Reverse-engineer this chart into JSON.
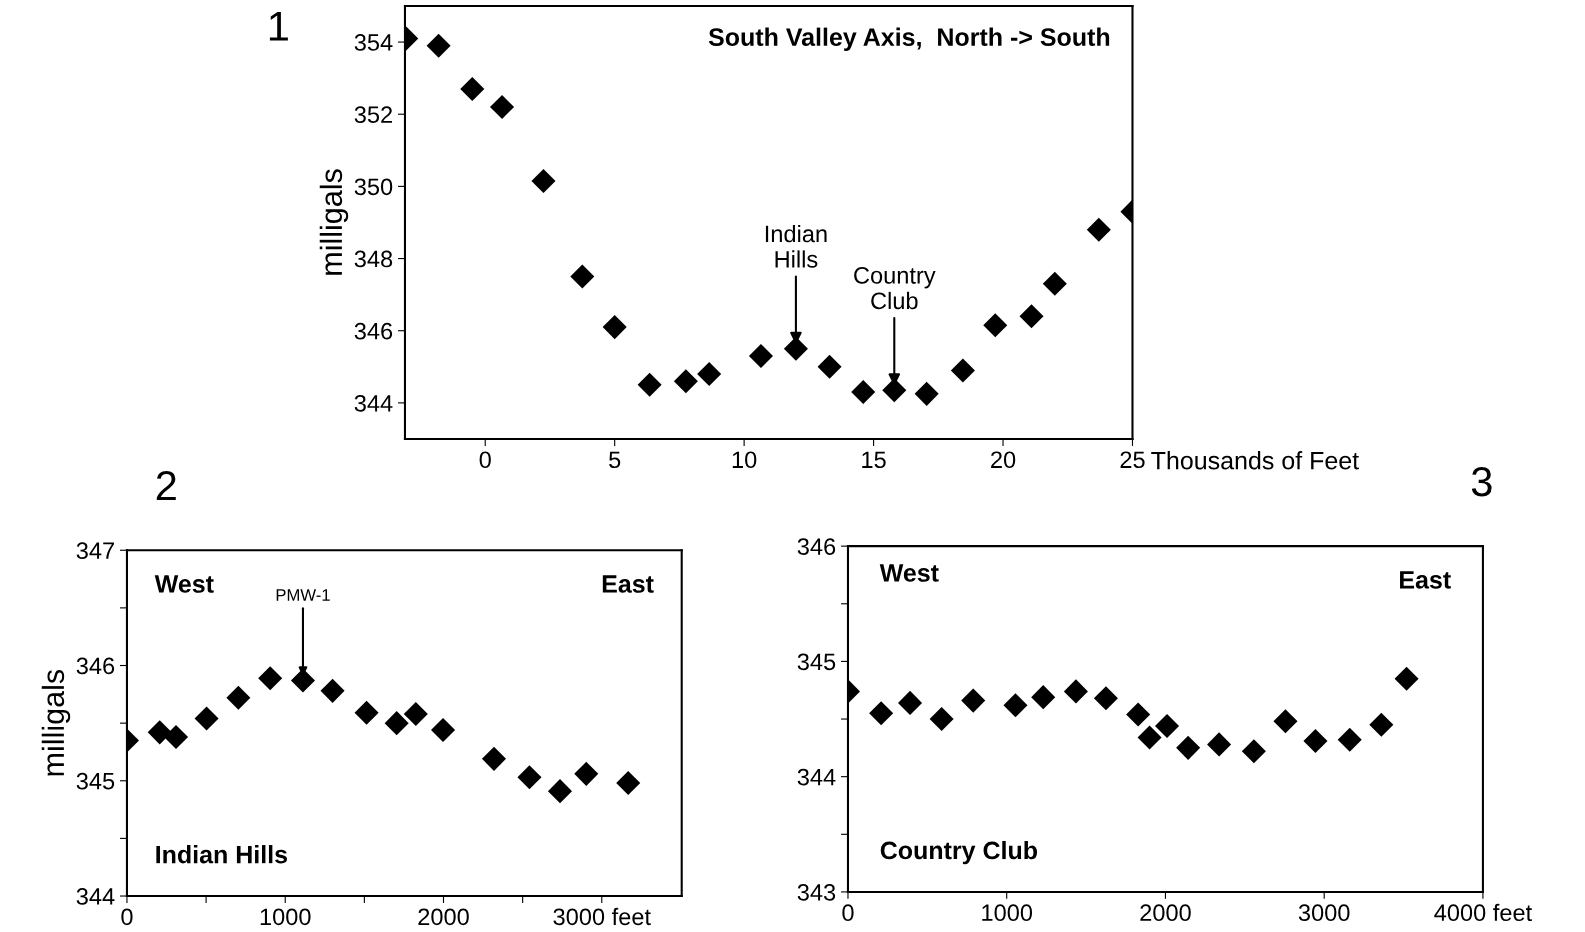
{
  "chart_data": [
    {
      "type": "scatter",
      "title": "1",
      "xlabel": "Thousands of Feet",
      "ylabel": "milligals",
      "marker": "diamond",
      "grid": false,
      "legend": false,
      "annotations": [
        "South Valley Axis,  North -> South",
        {
          "text": "Indian\nHills",
          "x": 12.0,
          "y": 345.5
        },
        {
          "text": "Country\nClub",
          "x": 15.8,
          "y": 344.35
        }
      ],
      "xlim": [
        -3.1,
        25
      ],
      "xticks": [
        0,
        5,
        10,
        15,
        20,
        25
      ],
      "ylim": [
        343,
        355
      ],
      "yticks": [
        344,
        346,
        348,
        350,
        352,
        354
      ],
      "series": [
        {
          "color": "#000000",
          "x": [
            -3.05,
            -1.8,
            -0.5,
            0.65,
            2.25,
            3.75,
            5.0,
            6.35,
            7.75,
            8.65,
            10.65,
            12.0,
            13.3,
            14.6,
            15.8,
            17.05,
            18.45,
            19.7,
            21.1,
            22.0,
            23.7,
            25.0
          ],
          "values": [
            354.1,
            353.9,
            352.7,
            352.2,
            350.15,
            347.5,
            346.1,
            344.5,
            344.6,
            344.8,
            345.3,
            345.5,
            345.0,
            344.3,
            344.35,
            344.25,
            344.9,
            346.15,
            346.4,
            347.3,
            348.8,
            349.3
          ]
        }
      ]
    },
    {
      "type": "scatter",
      "title": "2",
      "ylabel": "milligals",
      "marker": "diamond",
      "grid": false,
      "legend": false,
      "annotations": [
        "West",
        "East",
        "Indian Hills",
        {
          "text": "PMW-1",
          "x": 1112,
          "y": 345.87
        }
      ],
      "xlim": [
        0,
        3505
      ],
      "xticks": [
        0,
        {
          "value": 500,
          "label": null
        },
        1000,
        {
          "value": 1500,
          "label": null
        },
        2000,
        {
          "value": 2500,
          "label": null
        },
        {
          "value": 3000,
          "label": "3000 feet"
        }
      ],
      "ylim": [
        344,
        347
      ],
      "yticks": [
        344,
        {
          "value": 344.5,
          "label": null
        },
        345,
        {
          "value": 345.5,
          "label": null
        },
        346,
        {
          "value": 346.5,
          "label": null
        },
        347
      ],
      "series": [
        {
          "color": "#000000",
          "x": [
            0,
            207,
            310,
            503,
            704,
            905,
            1112,
            1299,
            1514,
            1704,
            1825,
            1997,
            2319,
            2543,
            2736,
            2902,
            3167
          ],
          "values": [
            345.35,
            345.42,
            345.38,
            345.54,
            345.72,
            345.89,
            345.87,
            345.78,
            345.59,
            345.5,
            345.58,
            345.44,
            345.19,
            345.03,
            344.91,
            345.06,
            344.98
          ]
        }
      ]
    },
    {
      "type": "scatter",
      "title": "3",
      "marker": "diamond",
      "grid": false,
      "legend": false,
      "annotations": [
        "West",
        "East",
        "Country Club"
      ],
      "xlim": [
        0,
        4000
      ],
      "xticks": [
        0,
        1000,
        2000,
        3000,
        {
          "value": 4000,
          "label": "4000 feet"
        }
      ],
      "ylim": [
        343,
        346
      ],
      "yticks": [
        343,
        {
          "value": 343.5,
          "label": null
        },
        344,
        {
          "value": 344.5,
          "label": null
        },
        345,
        {
          "value": 345.5,
          "label": null
        },
        346
      ],
      "series": [
        {
          "color": "#000000",
          "x": [
            0,
            209,
            391,
            590,
            789,
            1055,
            1230,
            1436,
            1625,
            1828,
            1900,
            2010,
            2143,
            2338,
            2557,
            2756,
            2945,
            3161,
            3360,
            3519
          ],
          "values": [
            344.74,
            344.55,
            344.64,
            344.5,
            344.66,
            344.62,
            344.69,
            344.74,
            344.68,
            344.54,
            344.34,
            344.44,
            344.25,
            344.28,
            344.22,
            344.48,
            344.31,
            344.32,
            344.45,
            344.85
          ]
        }
      ]
    }
  ]
}
